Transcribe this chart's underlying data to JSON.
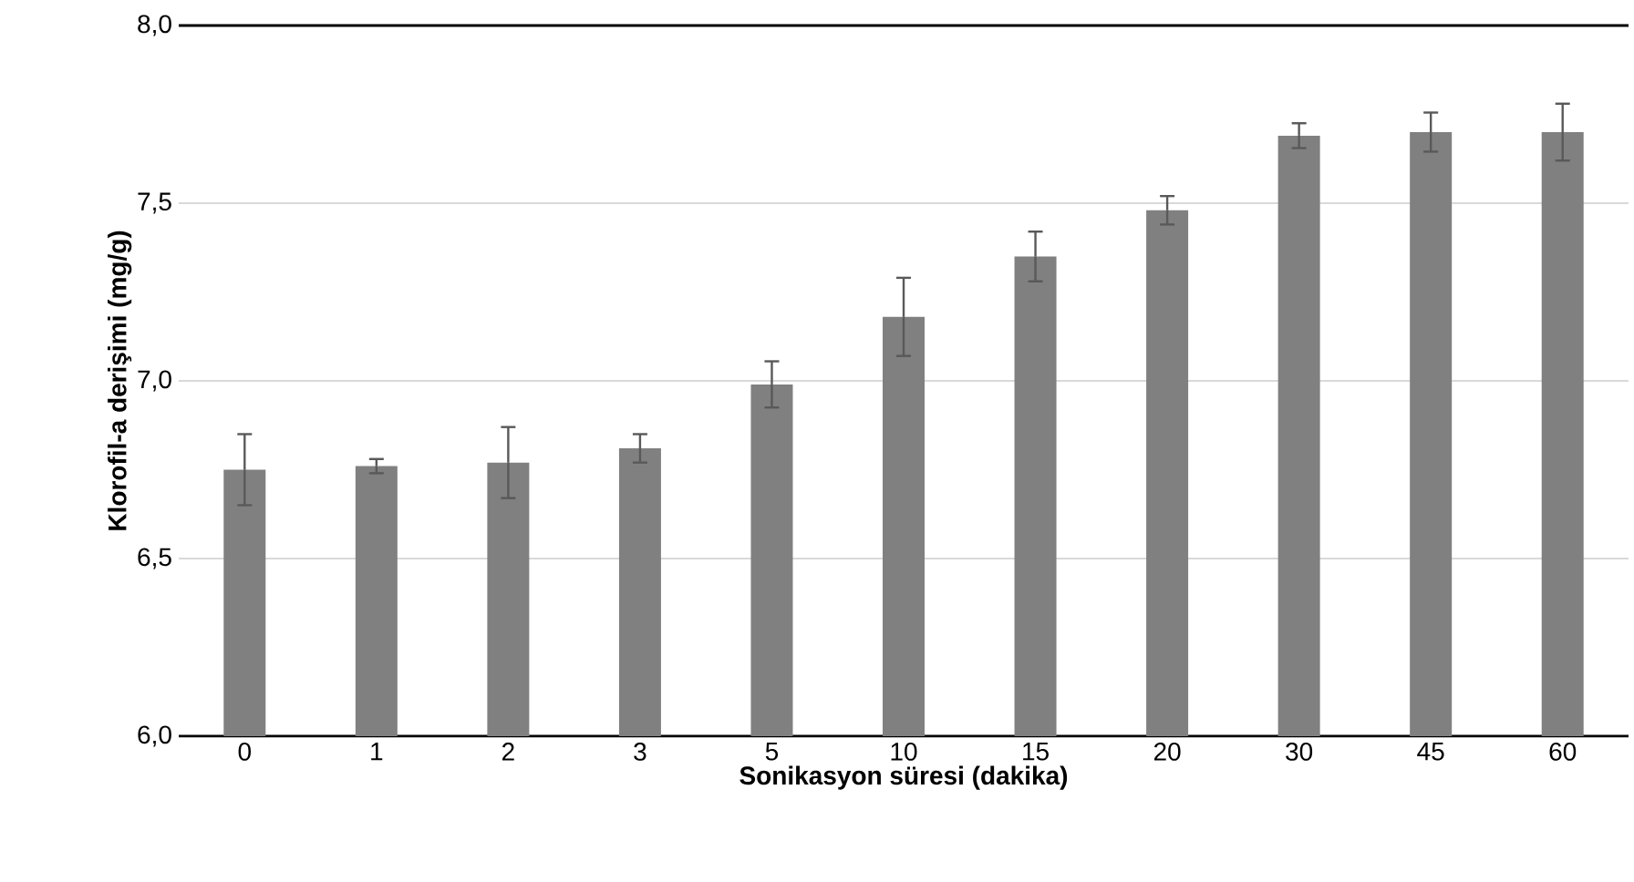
{
  "chart_data": {
    "type": "bar",
    "xlabel": "Sonikasyon süresi (dakika)",
    "ylabel": "Klorofil-a derişimi (mg/g)",
    "categories": [
      "0",
      "1",
      "2",
      "3",
      "5",
      "10",
      "15",
      "20",
      "30",
      "45",
      "60"
    ],
    "values": [
      6.75,
      6.76,
      6.77,
      6.81,
      6.99,
      7.18,
      7.35,
      7.48,
      7.69,
      7.7,
      7.7
    ],
    "errors": [
      0.1,
      0.02,
      0.1,
      0.04,
      0.065,
      0.11,
      0.07,
      0.04,
      0.035,
      0.055,
      0.08
    ],
    "color": "#808080",
    "ylim": [
      6.0,
      8.0
    ],
    "yticks": [
      {
        "value": 6.0,
        "label": "6,0"
      },
      {
        "value": 6.5,
        "label": "6,5"
      },
      {
        "value": 7.0,
        "label": "7,0"
      },
      {
        "value": 7.5,
        "label": "7,5"
      },
      {
        "value": 8.0,
        "label": "8,0"
      }
    ],
    "grid": "y"
  }
}
